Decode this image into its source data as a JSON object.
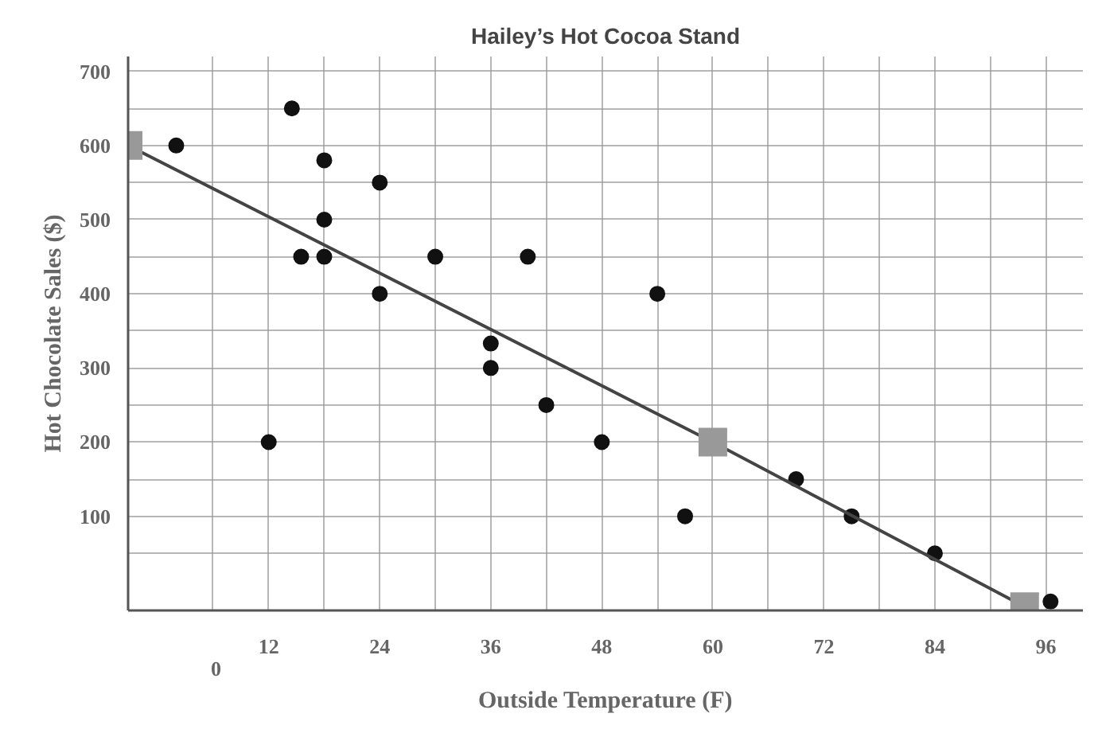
{
  "chart_data": {
    "type": "scatter",
    "title": "Hailey’s Hot Cocoa Stand",
    "xlabel": "Outside Temperature (F)",
    "ylabel": "Hot Chocolate Sales ($)",
    "xlim": [
      -3.2,
      100
    ],
    "ylim": [
      -27,
      720
    ],
    "xticks": [
      {
        "value": 6,
        "label": null
      },
      12,
      {
        "value": 18,
        "label": null
      },
      24,
      {
        "value": 30,
        "label": null
      },
      36,
      {
        "value": 42,
        "label": null
      },
      48,
      {
        "value": 54,
        "label": null
      },
      60,
      {
        "value": 66,
        "label": null
      },
      72,
      {
        "value": 78,
        "label": null
      },
      84,
      {
        "value": 90,
        "label": null
      },
      96
    ],
    "yticks": [
      {
        "value": 50,
        "label": null
      },
      100,
      {
        "value": 150,
        "label": null
      },
      200,
      {
        "value": 250,
        "label": null
      },
      300,
      {
        "value": 350,
        "label": null
      },
      400,
      {
        "value": 450,
        "label": null
      },
      500,
      {
        "value": 550,
        "label": null
      },
      600,
      {
        "value": 650,
        "label": null
      },
      700
    ],
    "grid": true,
    "annotations": [
      "0"
    ],
    "series": [
      {
        "marker": "circle",
        "color": "#111111",
        "x": [
          2,
          12,
          14.5,
          15.5,
          18,
          18,
          18,
          24,
          24,
          30,
          36,
          36,
          40,
          42,
          48,
          54,
          57,
          69,
          75,
          84,
          96.5
        ],
        "values": [
          600,
          200,
          650,
          450,
          580,
          500,
          450,
          550,
          400,
          450,
          333,
          300,
          450,
          250,
          200,
          400,
          100,
          150,
          100,
          50,
          -15
        ]
      },
      {
        "type": "line",
        "marker": "square",
        "color": "#444444",
        "x": [
          -3.2,
          60,
          93.7
        ],
        "values": [
          600,
          200,
          -22
        ]
      }
    ]
  }
}
